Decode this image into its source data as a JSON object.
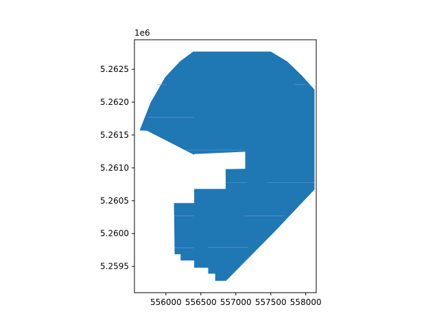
{
  "chart_data": {
    "type": "area",
    "title": "",
    "xlabel": "",
    "ylabel": "",
    "y_offset_label": "1e6",
    "xlim": [
      555550,
      558150
    ],
    "ylim": [
      5259100,
      5262950
    ],
    "x_ticks": [
      {
        "value": 556000,
        "label": "556000"
      },
      {
        "value": 556500,
        "label": "556500"
      },
      {
        "value": 557000,
        "label": "557000"
      },
      {
        "value": 557500,
        "label": "557500"
      },
      {
        "value": 558000,
        "label": "558000"
      }
    ],
    "y_ticks": [
      {
        "value": 5259500,
        "label": "5.2595"
      },
      {
        "value": 5260000,
        "label": "5.2600"
      },
      {
        "value": 5260500,
        "label": "5.2605"
      },
      {
        "value": 5261000,
        "label": "5.2610"
      },
      {
        "value": 5261500,
        "label": "5.2615"
      },
      {
        "value": 5262000,
        "label": "5.2620"
      },
      {
        "value": 5262500,
        "label": "5.2625"
      }
    ],
    "grid": false,
    "polygon": {
      "name": "",
      "fill": "#1f77b4",
      "outline": [
        [
          555625,
          5261570
        ],
        [
          555780,
          5261990
        ],
        [
          555990,
          5262380
        ],
        [
          556200,
          5262620
        ],
        [
          556390,
          5262770
        ],
        [
          557500,
          5262770
        ],
        [
          557735,
          5262620
        ],
        [
          557940,
          5262410
        ],
        [
          558125,
          5262190
        ],
        [
          558125,
          5260670
        ],
        [
          557570,
          5260045
        ],
        [
          557180,
          5259625
        ],
        [
          556860,
          5259280
        ],
        [
          556705,
          5259280
        ],
        [
          556705,
          5259390
        ],
        [
          556605,
          5259390
        ],
        [
          556605,
          5259480
        ],
        [
          556405,
          5259480
        ],
        [
          556405,
          5259590
        ],
        [
          556210,
          5259590
        ],
        [
          556210,
          5259685
        ],
        [
          556125,
          5259685
        ],
        [
          556115,
          5260465
        ],
        [
          556405,
          5260465
        ],
        [
          556405,
          5260680
        ],
        [
          556855,
          5260680
        ],
        [
          556855,
          5260980
        ],
        [
          557135,
          5260985
        ],
        [
          557135,
          5261245
        ],
        [
          556405,
          5261210
        ],
        [
          556400,
          5261200
        ],
        [
          555730,
          5261565
        ]
      ],
      "internal_boundaries": [
        [
          [
            555740,
            5261770
          ],
          [
            556405,
            5261770
          ]
        ],
        [
          [
            555870,
            5262270
          ],
          [
            556010,
            5262270
          ]
        ],
        [
          [
            557840,
            5262270
          ],
          [
            558000,
            5262270
          ]
        ],
        [
          [
            556270,
            5261270
          ],
          [
            557140,
            5261270
          ]
        ],
        [
          [
            556855,
            5260775
          ],
          [
            557150,
            5260775
          ]
        ],
        [
          [
            557450,
            5260775
          ],
          [
            558125,
            5260775
          ]
        ],
        [
          [
            556120,
            5260270
          ],
          [
            556400,
            5260270
          ]
        ],
        [
          [
            557120,
            5260270
          ],
          [
            557700,
            5260270
          ]
        ],
        [
          [
            556125,
            5259780
          ],
          [
            556400,
            5259780
          ]
        ],
        [
          [
            556600,
            5259790
          ],
          [
            557170,
            5259790
          ]
        ]
      ]
    }
  }
}
